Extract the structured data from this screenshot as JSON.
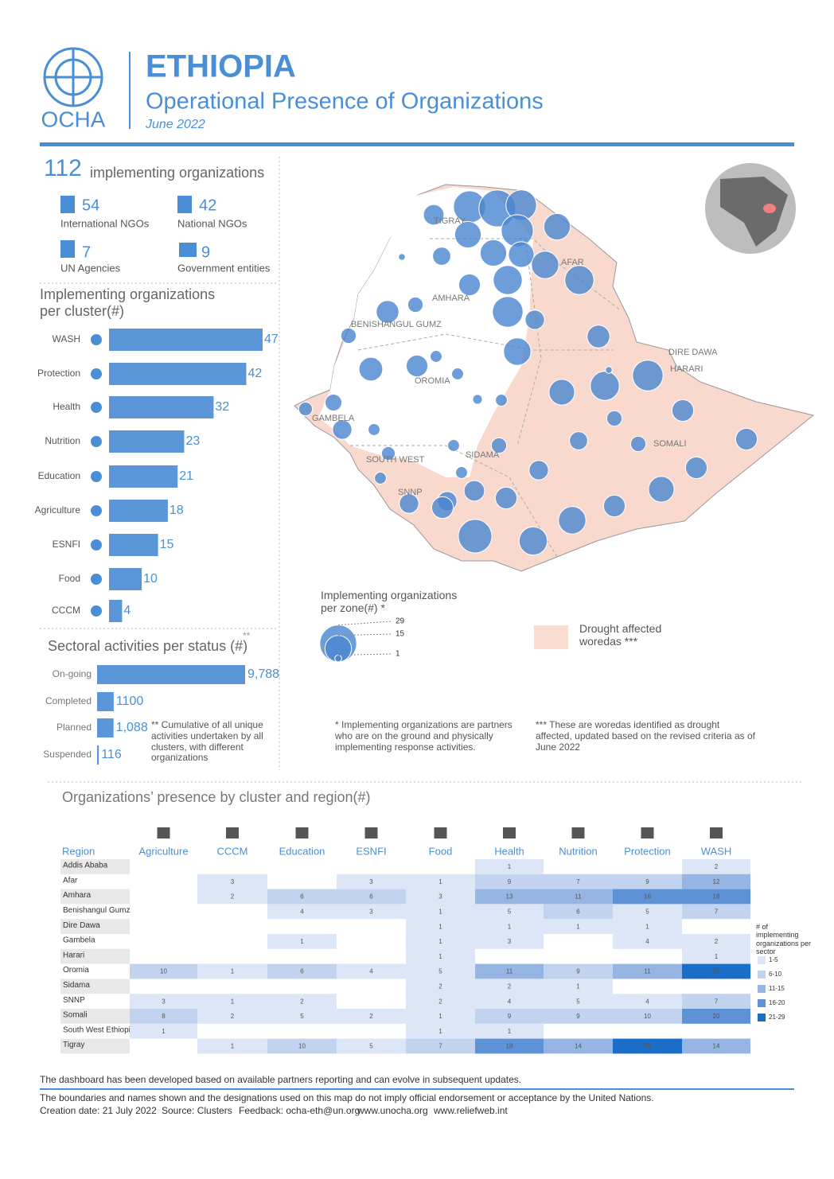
{
  "header": {
    "org": "OCHA",
    "title": "ETHIOPIA",
    "subtitle": "Operational Presence of Organizations",
    "date": "June 2022"
  },
  "summary": {
    "total": 112,
    "total_label": "implementing organizations",
    "items": [
      {
        "value": 54,
        "label": "International NGOs"
      },
      {
        "value": 42,
        "label": "National NGOs"
      },
      {
        "value": 7,
        "label": "UN Agencies"
      },
      {
        "value": 9,
        "label": "Government entities"
      }
    ]
  },
  "cluster_chart": {
    "type": "bar",
    "title": "Implementing organizations per cluster(#)",
    "categories": [
      "WASH",
      "Protection",
      "Health",
      "Nutrition",
      "Education",
      "Agriculture",
      "ESNFI",
      "Food",
      "CCCM"
    ],
    "values": [
      47,
      42,
      32,
      23,
      21,
      18,
      15,
      10,
      4
    ],
    "color": "#5b97d8"
  },
  "status_chart": {
    "type": "bar",
    "title": "Sectoral activities per status (#)",
    "title_note": "**",
    "categories": [
      "On-going",
      "Completed",
      "Planned",
      "Suspended"
    ],
    "values": [
      9788,
      1100,
      1088,
      116
    ],
    "value_labels": [
      "9,788",
      "1100",
      "1,088",
      "116"
    ],
    "color": "#5b97d8",
    "note": "** Cumulative of all unique activities undertaken by all clusters, with different organizations"
  },
  "map": {
    "region_labels": [
      "TIGRAY",
      "AFAR",
      "AMHARA",
      "BENISHANGUL GUMZ",
      "OROMIA",
      "DIRE DAWA",
      "HARARI",
      "GAMBELA",
      "SOUTH WEST",
      "SIDAMA",
      "SOMALI",
      "SNNP"
    ],
    "zone_values": [
      22,
      29,
      20,
      22,
      15,
      9,
      15,
      14,
      15,
      16,
      18,
      18,
      20,
      8,
      16,
      10,
      7,
      5,
      11,
      5,
      12,
      10,
      3,
      3,
      11,
      18,
      20,
      14,
      10,
      5,
      10,
      5,
      7,
      5,
      10,
      14,
      10,
      16,
      17,
      24,
      10,
      9,
      8,
      8,
      8,
      6,
      4,
      4,
      3,
      3,
      10,
      8,
      3,
      3,
      1,
      2,
      3,
      1
    ],
    "legend_title": "Implementing organizations per zone(#) *",
    "size_ticks": [
      29,
      15,
      1
    ],
    "drought_label": "Drought affected woredas ***",
    "notes": [
      "* Implementing organizations are partners who are on the ground and physically implementing response activities.",
      "*** These are woredas identified as drought affected, updated based on the revised criteria as of June 2022"
    ]
  },
  "heatmap": {
    "title": "Organizations’ presence by cluster and region(#)",
    "row_header": "Region",
    "columns": [
      "Agriculture",
      "CCCM",
      "Education",
      "ESNFI",
      "Food",
      "Health",
      "Nutrition",
      "Protection",
      "WASH"
    ],
    "rows": [
      "Addis Ababa",
      "Afar",
      "Amhara",
      "Benishangul Gumz",
      "Dire Dawa",
      "Gambela",
      "Harari",
      "Oromia",
      "Sidama",
      "SNNP",
      "Somali",
      "South West Ethiopia",
      "Tigray"
    ],
    "values": [
      [
        null,
        null,
        null,
        null,
        null,
        1,
        null,
        null,
        2
      ],
      [
        null,
        3,
        null,
        3,
        1,
        9,
        7,
        9,
        12
      ],
      [
        null,
        2,
        6,
        6,
        3,
        13,
        11,
        16,
        18
      ],
      [
        null,
        null,
        4,
        3,
        1,
        5,
        6,
        5,
        7
      ],
      [
        null,
        null,
        null,
        null,
        1,
        1,
        1,
        1,
        null
      ],
      [
        null,
        null,
        1,
        null,
        1,
        3,
        null,
        4,
        2
      ],
      [
        null,
        null,
        null,
        null,
        1,
        null,
        null,
        null,
        1
      ],
      [
        10,
        1,
        6,
        4,
        5,
        11,
        9,
        11,
        25
      ],
      [
        null,
        null,
        null,
        null,
        2,
        2,
        1,
        null,
        null
      ],
      [
        3,
        1,
        2,
        null,
        2,
        4,
        5,
        4,
        7
      ],
      [
        8,
        2,
        5,
        2,
        1,
        9,
        9,
        10,
        20
      ],
      [
        1,
        null,
        null,
        null,
        1,
        1,
        null,
        null,
        null
      ],
      [
        null,
        1,
        10,
        5,
        7,
        18,
        14,
        29,
        14
      ]
    ],
    "legend": {
      "title": "# of implementing organizations per sector",
      "bins": [
        {
          "label": "1-5",
          "color": "#dde6f6"
        },
        {
          "label": "6-10",
          "color": "#c2d3ef"
        },
        {
          "label": "11-15",
          "color": "#96b5e3"
        },
        {
          "label": "16-20",
          "color": "#5d92d6"
        },
        {
          "label": "21-29",
          "color": "#1a6ec8"
        }
      ]
    }
  },
  "footer": {
    "note": "The dashboard has been developed based on available partners reporting and can evolve in subsequent updates.",
    "disclaimer": "The boundaries and names shown and the designations used on this map do not imply official endorsement or acceptance by the United Nations.",
    "credits": [
      "Creation date: 21 July 2022",
      "Source: Clusters",
      "Feedback: ocha-eth@un.org",
      "www.unocha.org",
      "www.reliefweb.int"
    ]
  }
}
